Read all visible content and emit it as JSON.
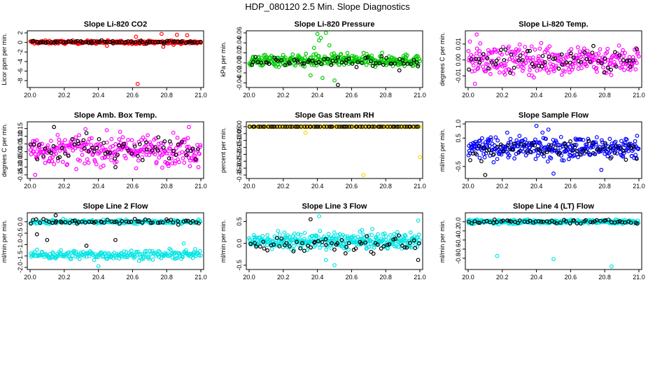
{
  "figure_title": "HDP_080120  2.5 Min. Slope Diagnostics",
  "chart_data": [
    {
      "type": "scatter",
      "title": "Slope Li-820 CO2",
      "ylabel": "Licor ppm per min.",
      "xlim": [
        20.0,
        21.0
      ],
      "ylim": [
        -9,
        2
      ],
      "xticks": [
        "20.0",
        "20.2",
        "20.4",
        "20.6",
        "20.8",
        "21.0"
      ],
      "yticks": [
        {
          "v": 2,
          "label": "2"
        },
        {
          "v": 0,
          "label": "0"
        },
        {
          "v": -2,
          "label": "-2"
        },
        {
          "v": -4,
          "label": "-4"
        },
        {
          "v": -6,
          "label": "-6"
        },
        {
          "v": -8,
          "label": "-8"
        }
      ],
      "series": [
        {
          "name": "all",
          "color": "#ff0000",
          "band": {
            "center": 0.05,
            "spread": 0.3,
            "n": 260
          },
          "extra": [
            [
              20.63,
              -8.7
            ],
            [
              20.78,
              -0.9
            ],
            [
              20.62,
              1.2
            ],
            [
              20.77,
              1.8
            ],
            [
              20.86,
              1.6
            ],
            [
              20.92,
              1.5
            ],
            [
              20.45,
              -0.7
            ],
            [
              20.84,
              -0.5
            ]
          ]
        },
        {
          "name": "selected",
          "color": "#000000",
          "band": {
            "center": 0.1,
            "spread": 0.25,
            "n": 70
          },
          "extra": []
        }
      ]
    },
    {
      "type": "scatter",
      "title": "Slope Li-820 Pressure",
      "ylabel": "kPa per min.",
      "xlim": [
        20.0,
        21.0
      ],
      "ylim": [
        -0.045,
        0.06
      ],
      "xticks": [
        "20.0",
        "20.2",
        "20.4",
        "20.6",
        "20.8",
        "21.0"
      ],
      "yticks": [
        {
          "v": 0.06,
          "label": "0.06"
        },
        {
          "v": 0.04,
          "label": "0.04"
        },
        {
          "v": 0.02,
          "label": "0.02"
        },
        {
          "v": 0.0,
          "label": "0.00"
        },
        {
          "v": -0.02,
          "label": "-0.02"
        },
        {
          "v": -0.04,
          "label": "-0.04"
        }
      ],
      "series": [
        {
          "name": "all",
          "color": "#00cc00",
          "band": {
            "center": 0.005,
            "spread": 0.011,
            "n": 320
          },
          "extra": [
            [
              20.4,
              0.058
            ],
            [
              20.42,
              0.05
            ],
            [
              20.41,
              0.045
            ],
            [
              20.45,
              0.06
            ],
            [
              20.38,
              0.03
            ],
            [
              20.47,
              0.035
            ],
            [
              20.43,
              -0.03
            ],
            [
              20.5,
              -0.035
            ],
            [
              20.36,
              -0.025
            ]
          ]
        },
        {
          "name": "selected",
          "color": "#000000",
          "band": {
            "center": 0.002,
            "spread": 0.008,
            "n": 60
          },
          "extra": [
            [
              20.52,
              -0.044
            ],
            [
              20.88,
              -0.015
            ]
          ]
        }
      ]
    },
    {
      "type": "scatter",
      "title": "Slope Li-820 Temp.",
      "ylabel": "degrees C per min.",
      "xlim": [
        20.0,
        21.0
      ],
      "ylim": [
        -0.016,
        0.017
      ],
      "xticks": [
        "20.0",
        "20.2",
        "20.4",
        "20.6",
        "20.8",
        "21.0"
      ],
      "yticks": [
        {
          "v": 0.01,
          "label": "0.01"
        },
        {
          "v": 0.0,
          "label": "0.00"
        },
        {
          "v": -0.01,
          "label": "-0.01"
        }
      ],
      "series": [
        {
          "name": "all",
          "color": "#ff00ff",
          "band": {
            "center": 0.0,
            "spread": 0.0085,
            "n": 300
          },
          "extra": [
            [
              20.05,
              0.016
            ],
            [
              20.04,
              -0.015
            ]
          ]
        },
        {
          "name": "selected",
          "color": "#000000",
          "band": {
            "center": 0.0,
            "spread": 0.007,
            "n": 60
          },
          "extra": []
        }
      ]
    },
    {
      "type": "scatter",
      "title": "Slope Amb. Box Temp.",
      "ylabel": "degrees C per min.",
      "xlim": [
        20.0,
        21.0
      ],
      "ylim": [
        -0.16,
        0.18
      ],
      "xticks": [
        "20.0",
        "20.2",
        "20.4",
        "20.6",
        "20.8",
        "21.0"
      ],
      "yticks": [
        {
          "v": 0.15,
          "label": "0.15"
        },
        {
          "v": 0.1,
          "label": "0.10"
        },
        {
          "v": 0.05,
          "label": "0.05"
        },
        {
          "v": 0.0,
          "label": "0.00"
        },
        {
          "v": -0.05,
          "label": "-0.05"
        },
        {
          "v": -0.1,
          "label": "-0.10"
        },
        {
          "v": -0.15,
          "label": "-0.15"
        }
      ],
      "series": [
        {
          "name": "all",
          "color": "#ff00ff",
          "band": {
            "center": 0.01,
            "spread": 0.085,
            "n": 300
          },
          "extra": [
            [
              20.03,
              -0.15
            ],
            [
              20.93,
              0.16
            ]
          ]
        },
        {
          "name": "selected",
          "color": "#000000",
          "band": {
            "center": 0.02,
            "spread": 0.07,
            "n": 60
          },
          "extra": [
            [
              20.14,
              0.16
            ],
            [
              20.33,
              0.12
            ],
            [
              20.5,
              -0.1
            ]
          ]
        }
      ]
    },
    {
      "type": "scatter",
      "title": "Slope Gas Stream RH",
      "ylabel": "percent per min.",
      "xlim": [
        20.0,
        21.0
      ],
      "ylim": [
        -0.36,
        0.02
      ],
      "xticks": [
        "20.0",
        "20.2",
        "20.4",
        "20.6",
        "20.8",
        "21.0"
      ],
      "yticks": [
        {
          "v": 0.0,
          "label": "0.00"
        },
        {
          "v": -0.05,
          "label": "-0.05"
        },
        {
          "v": -0.1,
          "label": "-0.10"
        },
        {
          "v": -0.15,
          "label": "-0.15"
        },
        {
          "v": -0.2,
          "label": "-0.20"
        },
        {
          "v": -0.25,
          "label": "-0.25"
        },
        {
          "v": -0.3,
          "label": "-0.30"
        },
        {
          "v": -0.35,
          "label": "-0.35"
        }
      ],
      "series": [
        {
          "name": "all",
          "color": "#ffd700",
          "band": {
            "center": 0.0,
            "spread": 0.0,
            "n": 300
          },
          "extra": [
            [
              20.33,
              -0.045
            ],
            [
              20.67,
              -0.35
            ],
            [
              21.0,
              -0.22
            ]
          ]
        },
        {
          "name": "selected",
          "color": "#000000",
          "band": {
            "center": 0.0,
            "spread": 0.0,
            "n": 70
          },
          "extra": []
        }
      ]
    },
    {
      "type": "scatter",
      "title": "Slope Sample Flow",
      "ylabel": "ml/min per min.",
      "xlim": [
        20.0,
        21.0
      ],
      "ylim": [
        -0.85,
        1.0
      ],
      "xticks": [
        "20.0",
        "20.2",
        "20.4",
        "20.6",
        "20.8",
        "21.0"
      ],
      "yticks": [
        {
          "v": 1.0,
          "label": "1.0"
        },
        {
          "v": 0.5,
          "label": "0.5"
        },
        {
          "v": -0.5,
          "label": "-0.5"
        }
      ],
      "series": [
        {
          "name": "all",
          "color": "#0000ff",
          "band": {
            "center": 0.15,
            "spread": 0.35,
            "n": 330
          },
          "extra": [
            [
              20.4,
              0.93
            ],
            [
              20.47,
              0.8
            ],
            [
              20.78,
              -0.62
            ],
            [
              20.5,
              -0.75
            ]
          ]
        },
        {
          "name": "selected",
          "color": "#000000",
          "band": {
            "center": 0.1,
            "spread": 0.3,
            "n": 60
          },
          "extra": [
            [
              20.1,
              -0.8
            ]
          ]
        }
      ]
    },
    {
      "type": "scatter",
      "title": "Slope Line 2 Flow",
      "ylabel": "ml/min per min.",
      "xlim": [
        20.0,
        21.0
      ],
      "ylim": [
        -2.0,
        0.3
      ],
      "xticks": [
        "20.0",
        "20.2",
        "20.4",
        "20.6",
        "20.8",
        "21.0"
      ],
      "yticks": [
        {
          "v": 0.0,
          "label": "0.0"
        },
        {
          "v": -0.5,
          "label": "-0.5"
        },
        {
          "v": -1.0,
          "label": "-1.0"
        },
        {
          "v": -1.5,
          "label": "-1.5"
        },
        {
          "v": -2.0,
          "label": "-2.0"
        }
      ],
      "series": [
        {
          "name": "all",
          "color": "#00e5e5",
          "band": {
            "center": -1.45,
            "spread": 0.18,
            "n": 220
          },
          "band2": {
            "center": 0.0,
            "spread": 0.08,
            "n": 200
          },
          "extra": [
            [
              20.4,
              -1.95
            ],
            [
              20.9,
              -0.95
            ]
          ]
        },
        {
          "name": "selected",
          "color": "#000000",
          "band": {
            "center": 0.0,
            "spread": 0.1,
            "n": 60
          },
          "extra": [
            [
              20.15,
              0.28
            ],
            [
              20.04,
              -0.55
            ],
            [
              20.1,
              -0.8
            ],
            [
              20.33,
              -1.05
            ],
            [
              20.5,
              -0.8
            ]
          ]
        }
      ]
    },
    {
      "type": "scatter",
      "title": "Slope Line 3 Flow",
      "ylabel": "ml/min per min.",
      "xlim": [
        20.0,
        21.0
      ],
      "ylim": [
        -0.55,
        0.65
      ],
      "xticks": [
        "20.0",
        "20.2",
        "20.4",
        "20.6",
        "20.8",
        "21.0"
      ],
      "yticks": [
        {
          "v": 0.5,
          "label": "0.5"
        },
        {
          "v": 0.0,
          "label": "0.0"
        },
        {
          "v": -0.5,
          "label": "-0.5"
        }
      ],
      "series": [
        {
          "name": "all",
          "color": "#00e5e5",
          "band": {
            "center": 0.05,
            "spread": 0.17,
            "n": 340
          },
          "extra": [
            [
              20.41,
              0.62
            ],
            [
              20.5,
              -0.5
            ],
            [
              20.45,
              -0.38
            ],
            [
              20.99,
              0.52
            ]
          ]
        },
        {
          "name": "selected",
          "color": "#000000",
          "band": {
            "center": 0.0,
            "spread": 0.18,
            "n": 60
          },
          "extra": [
            [
              20.36,
              0.55
            ],
            [
              20.99,
              -0.38
            ]
          ]
        }
      ]
    },
    {
      "type": "scatter",
      "title": "Slope Line 4 (LT) Flow",
      "ylabel": "ml/min per min.",
      "xlim": [
        20.0,
        21.0
      ],
      "ylim": [
        -1.0,
        0.15
      ],
      "xticks": [
        "20.0",
        "20.2",
        "20.4",
        "20.6",
        "20.8",
        "21.0"
      ],
      "yticks": [
        {
          "v": 0.0,
          "label": "0.0"
        },
        {
          "v": -0.2,
          "label": "-0.2"
        },
        {
          "v": -0.4,
          "label": "-0.4"
        },
        {
          "v": -0.6,
          "label": "-0.6"
        },
        {
          "v": -0.8,
          "label": "-0.8"
        }
      ],
      "series": [
        {
          "name": "all",
          "color": "#00e5e5",
          "band": {
            "center": 0.0,
            "spread": 0.04,
            "n": 300
          },
          "extra": [
            [
              20.17,
              -0.75
            ],
            [
              20.5,
              -0.82
            ],
            [
              20.84,
              -0.98
            ]
          ]
        },
        {
          "name": "selected",
          "color": "#000000",
          "band": {
            "center": 0.0,
            "spread": 0.035,
            "n": 60
          },
          "extra": []
        }
      ]
    }
  ]
}
